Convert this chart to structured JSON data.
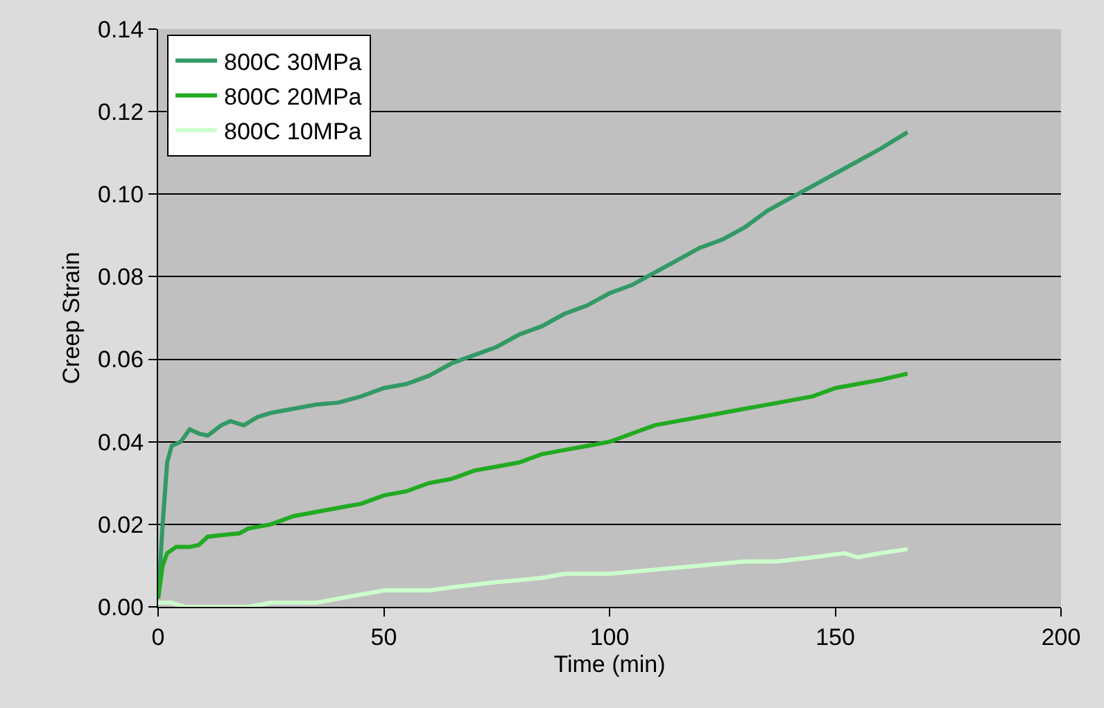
{
  "chart_data": {
    "type": "line",
    "xlabel": "Time (min)",
    "ylabel": "Creep Strain",
    "xlim": [
      0,
      200
    ],
    "xticks": [
      0,
      50,
      100,
      150,
      200
    ],
    "ylim": [
      0,
      0.14
    ],
    "yticks": [
      {
        "value": 0,
        "label": "0.00"
      },
      {
        "value": 0.02,
        "label": "0.02"
      },
      {
        "value": 0.04,
        "label": "0.04"
      },
      {
        "value": 0.06,
        "label": "0.06"
      },
      {
        "value": 0.08,
        "label": "0.08"
      },
      {
        "value": 0.1,
        "label": "0.10"
      },
      {
        "value": 0.12,
        "label": "0.12"
      },
      {
        "value": 0.14,
        "label": "0.14"
      }
    ],
    "grid": "y",
    "legend": "top left",
    "marker": "none",
    "line_style": "solid",
    "series": [
      {
        "name": "800C 30MPa",
        "color": "#339966",
        "x": [
          0,
          1,
          2,
          3,
          5,
          7,
          9,
          11,
          14,
          16,
          19,
          22,
          25,
          30,
          35,
          40,
          45,
          50,
          55,
          60,
          65,
          70,
          75,
          80,
          85,
          90,
          95,
          100,
          105,
          110,
          115,
          120,
          125,
          130,
          135,
          140,
          145,
          150,
          155,
          160,
          166
        ],
        "values": [
          0.002,
          0.02,
          0.035,
          0.039,
          0.04,
          0.043,
          0.042,
          0.0415,
          0.044,
          0.045,
          0.044,
          0.046,
          0.047,
          0.048,
          0.049,
          0.0495,
          0.051,
          0.053,
          0.054,
          0.056,
          0.059,
          0.061,
          0.063,
          0.066,
          0.068,
          0.071,
          0.073,
          0.076,
          0.078,
          0.081,
          0.084,
          0.087,
          0.089,
          0.092,
          0.096,
          0.099,
          0.102,
          0.105,
          0.108,
          0.111,
          0.115
        ]
      },
      {
        "name": "800C 20MPa",
        "color": "#22aa22",
        "x": [
          0,
          1,
          2,
          4,
          7,
          9,
          11,
          15,
          18,
          20,
          25,
          30,
          35,
          40,
          45,
          50,
          55,
          60,
          65,
          70,
          75,
          80,
          85,
          90,
          95,
          100,
          105,
          110,
          115,
          120,
          125,
          130,
          135,
          140,
          145,
          150,
          155,
          160,
          166
        ],
        "values": [
          0.002,
          0.01,
          0.013,
          0.0145,
          0.0145,
          0.015,
          0.017,
          0.0175,
          0.0178,
          0.019,
          0.02,
          0.022,
          0.023,
          0.024,
          0.025,
          0.027,
          0.028,
          0.03,
          0.031,
          0.033,
          0.034,
          0.035,
          0.037,
          0.038,
          0.039,
          0.04,
          0.042,
          0.044,
          0.045,
          0.046,
          0.047,
          0.048,
          0.049,
          0.05,
          0.051,
          0.053,
          0.054,
          0.055,
          0.0565
        ]
      },
      {
        "name": "800C 10MPa",
        "color": "#ccffcc",
        "x": [
          0,
          3,
          6,
          15,
          20,
          25,
          35,
          40,
          45,
          50,
          60,
          67,
          75,
          85,
          90,
          100,
          110,
          120,
          130,
          137,
          145,
          152,
          155,
          160,
          166
        ],
        "values": [
          0.001,
          0.001,
          0,
          0,
          0,
          0.001,
          0.001,
          0.002,
          0.003,
          0.004,
          0.004,
          0.005,
          0.006,
          0.007,
          0.008,
          0.008,
          0.009,
          0.01,
          0.011,
          0.011,
          0.012,
          0.013,
          0.012,
          0.013,
          0.014
        ]
      }
    ]
  }
}
